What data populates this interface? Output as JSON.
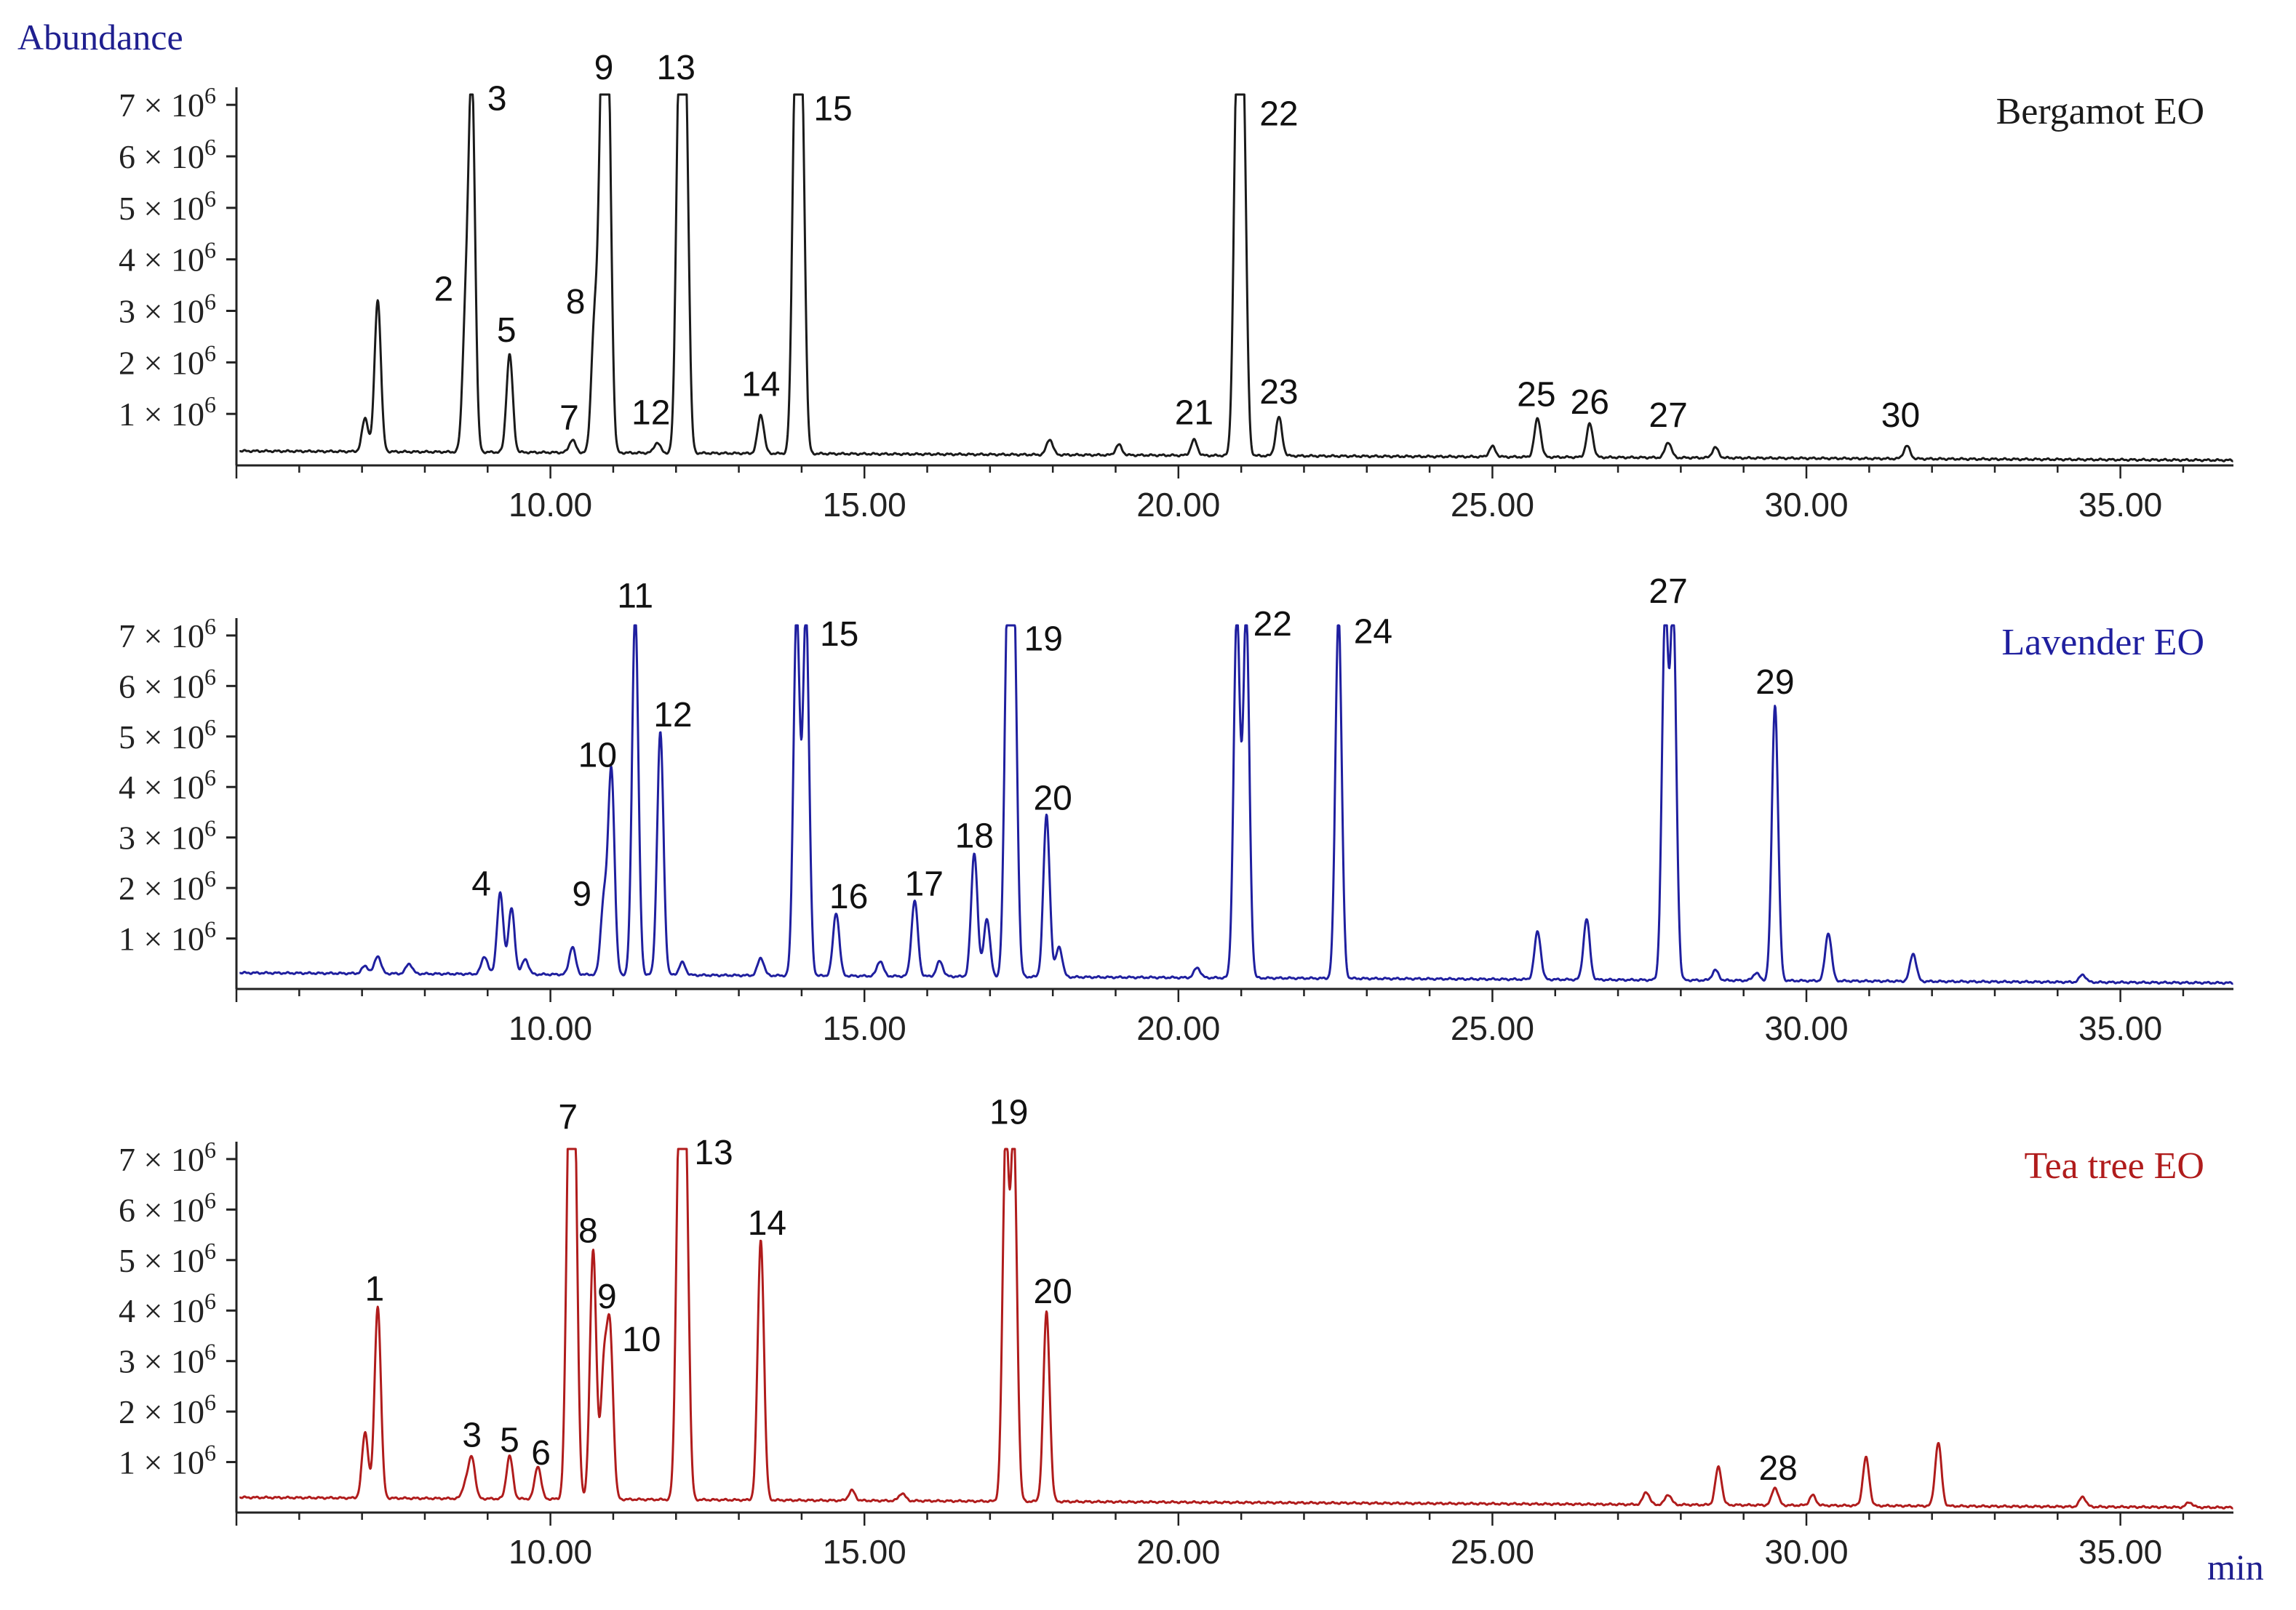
{
  "figure": {
    "y_axis_title": "Abundance",
    "x_axis_title": "min",
    "title_color": "#1f1f8f",
    "tick_prefix": "× 10",
    "tick_exp": "6"
  },
  "chart_data": [
    {
      "type": "line",
      "title": "Bergamot EO",
      "color": "#1a1a1a",
      "title_color": "#1a1a1a",
      "xlim": [
        5.0,
        36.8
      ],
      "ylim": [
        0,
        7.2
      ],
      "y_ticks": [
        1,
        2,
        3,
        4,
        5,
        6,
        7
      ],
      "x_ticks": [
        "10.00",
        "15.00",
        "20.00",
        "25.00",
        "30.00",
        "35.00"
      ],
      "baseline_start": 0.28,
      "baseline_end": 0.1,
      "peaks": [
        {
          "rt": 7.05,
          "h": 0.65,
          "w": 0.05
        },
        {
          "rt": 7.25,
          "h": 2.95,
          "w": 0.05
        },
        {
          "rt": 8.65,
          "h": 2.55,
          "w": 0.05
        },
        {
          "rt": 8.75,
          "h": 7.2,
          "w": 0.05
        },
        {
          "rt": 9.35,
          "h": 1.9,
          "w": 0.05
        },
        {
          "rt": 10.35,
          "h": 0.25,
          "w": 0.05
        },
        {
          "rt": 10.7,
          "h": 2.45,
          "w": 0.05
        },
        {
          "rt": 10.82,
          "h": 7.2,
          "w": 0.05
        },
        {
          "rt": 10.92,
          "h": 7.2,
          "w": 0.05
        },
        {
          "rt": 11.7,
          "h": 0.2,
          "w": 0.05
        },
        {
          "rt": 12.05,
          "h": 7.2,
          "w": 0.05
        },
        {
          "rt": 12.15,
          "h": 7.2,
          "w": 0.05
        },
        {
          "rt": 13.35,
          "h": 0.75,
          "w": 0.05
        },
        {
          "rt": 13.9,
          "h": 7.2,
          "w": 0.05
        },
        {
          "rt": 14.0,
          "h": 7.2,
          "w": 0.05
        },
        {
          "rt": 17.95,
          "h": 0.3,
          "w": 0.05
        },
        {
          "rt": 19.05,
          "h": 0.2,
          "w": 0.05
        },
        {
          "rt": 20.25,
          "h": 0.3,
          "w": 0.05
        },
        {
          "rt": 20.93,
          "h": 7.2,
          "w": 0.05
        },
        {
          "rt": 21.03,
          "h": 7.2,
          "w": 0.05
        },
        {
          "rt": 21.6,
          "h": 0.75,
          "w": 0.05
        },
        {
          "rt": 25.0,
          "h": 0.2,
          "w": 0.05
        },
        {
          "rt": 25.72,
          "h": 0.75,
          "w": 0.05
        },
        {
          "rt": 26.55,
          "h": 0.65,
          "w": 0.05
        },
        {
          "rt": 27.8,
          "h": 0.3,
          "w": 0.05
        },
        {
          "rt": 28.55,
          "h": 0.2,
          "w": 0.05
        },
        {
          "rt": 31.6,
          "h": 0.25,
          "w": 0.05
        }
      ],
      "labels": [
        {
          "text": "2",
          "rt": 8.3,
          "y": 3.2
        },
        {
          "text": "3",
          "rt": 9.15,
          "y": 6.9
        },
        {
          "text": "5",
          "rt": 9.3,
          "y": 2.4
        },
        {
          "text": "7",
          "rt": 10.3,
          "y": 0.7
        },
        {
          "text": "8",
          "rt": 10.4,
          "y": 2.95
        },
        {
          "text": "9",
          "rt": 10.85,
          "y": 7.5
        },
        {
          "text": "13",
          "rt": 12.0,
          "y": 7.5
        },
        {
          "text": "12",
          "rt": 11.6,
          "y": 0.8
        },
        {
          "text": "14",
          "rt": 13.35,
          "y": 1.35
        },
        {
          "text": "15",
          "rt": 14.5,
          "y": 6.7
        },
        {
          "text": "21",
          "rt": 20.25,
          "y": 0.8
        },
        {
          "text": "22",
          "rt": 21.6,
          "y": 6.6
        },
        {
          "text": "23",
          "rt": 21.6,
          "y": 1.2
        },
        {
          "text": "25",
          "rt": 25.7,
          "y": 1.15
        },
        {
          "text": "26",
          "rt": 26.55,
          "y": 1.0
        },
        {
          "text": "27",
          "rt": 27.8,
          "y": 0.75
        },
        {
          "text": "30",
          "rt": 31.5,
          "y": 0.75
        }
      ]
    },
    {
      "type": "line",
      "title": "Lavender EO",
      "color": "#1f1f9f",
      "title_color": "#1f1f9f",
      "xlim": [
        5.0,
        36.8
      ],
      "ylim": [
        0,
        7.2
      ],
      "y_ticks": [
        1,
        2,
        3,
        4,
        5,
        6,
        7
      ],
      "x_ticks": [
        "10.00",
        "15.00",
        "20.00",
        "25.00",
        "30.00",
        "35.00"
      ],
      "baseline_start": 0.32,
      "baseline_end": 0.12,
      "peaks": [
        {
          "rt": 7.05,
          "h": 0.15,
          "w": 0.05
        },
        {
          "rt": 7.25,
          "h": 0.35,
          "w": 0.05
        },
        {
          "rt": 7.75,
          "h": 0.2,
          "w": 0.05
        },
        {
          "rt": 8.95,
          "h": 0.35,
          "w": 0.05
        },
        {
          "rt": 9.2,
          "h": 1.6,
          "w": 0.05
        },
        {
          "rt": 9.38,
          "h": 1.3,
          "w": 0.05
        },
        {
          "rt": 9.6,
          "h": 0.3,
          "w": 0.05
        },
        {
          "rt": 10.35,
          "h": 0.55,
          "w": 0.05
        },
        {
          "rt": 10.85,
          "h": 1.45,
          "w": 0.05
        },
        {
          "rt": 10.97,
          "h": 4.05,
          "w": 0.05
        },
        {
          "rt": 11.35,
          "h": 7.2,
          "w": 0.05
        },
        {
          "rt": 11.75,
          "h": 4.8,
          "w": 0.05
        },
        {
          "rt": 12.1,
          "h": 0.25,
          "w": 0.05
        },
        {
          "rt": 13.35,
          "h": 0.35,
          "w": 0.05
        },
        {
          "rt": 13.92,
          "h": 7.2,
          "w": 0.05
        },
        {
          "rt": 14.07,
          "h": 7.2,
          "w": 0.05
        },
        {
          "rt": 14.55,
          "h": 1.25,
          "w": 0.05
        },
        {
          "rt": 15.25,
          "h": 0.3,
          "w": 0.05
        },
        {
          "rt": 15.8,
          "h": 1.5,
          "w": 0.05
        },
        {
          "rt": 16.2,
          "h": 0.3,
          "w": 0.05
        },
        {
          "rt": 16.75,
          "h": 2.45,
          "w": 0.05
        },
        {
          "rt": 16.95,
          "h": 1.15,
          "w": 0.05
        },
        {
          "rt": 17.28,
          "h": 7.2,
          "w": 0.05
        },
        {
          "rt": 17.38,
          "h": 7.2,
          "w": 0.05
        },
        {
          "rt": 17.9,
          "h": 3.2,
          "w": 0.05
        },
        {
          "rt": 18.1,
          "h": 0.6,
          "w": 0.05
        },
        {
          "rt": 20.3,
          "h": 0.2,
          "w": 0.05
        },
        {
          "rt": 20.93,
          "h": 7.2,
          "w": 0.05
        },
        {
          "rt": 21.08,
          "h": 7.2,
          "w": 0.05
        },
        {
          "rt": 22.55,
          "h": 7.2,
          "w": 0.05
        },
        {
          "rt": 25.72,
          "h": 0.95,
          "w": 0.05
        },
        {
          "rt": 26.5,
          "h": 1.2,
          "w": 0.05
        },
        {
          "rt": 27.75,
          "h": 7.2,
          "w": 0.05
        },
        {
          "rt": 27.88,
          "h": 7.2,
          "w": 0.05
        },
        {
          "rt": 28.55,
          "h": 0.2,
          "w": 0.05
        },
        {
          "rt": 29.2,
          "h": 0.15,
          "w": 0.05
        },
        {
          "rt": 29.5,
          "h": 5.45,
          "w": 0.05
        },
        {
          "rt": 30.35,
          "h": 0.95,
          "w": 0.05
        },
        {
          "rt": 31.7,
          "h": 0.55,
          "w": 0.05
        },
        {
          "rt": 34.4,
          "h": 0.15,
          "w": 0.05
        }
      ],
      "labels": [
        {
          "text": "4",
          "rt": 8.9,
          "y": 1.85
        },
        {
          "text": "9",
          "rt": 10.5,
          "y": 1.65
        },
        {
          "text": "10",
          "rt": 10.75,
          "y": 4.4
        },
        {
          "text": "11",
          "rt": 11.35,
          "y": 7.55
        },
        {
          "text": "12",
          "rt": 11.95,
          "y": 5.2
        },
        {
          "text": "15",
          "rt": 14.6,
          "y": 6.8
        },
        {
          "text": "16",
          "rt": 14.75,
          "y": 1.6
        },
        {
          "text": "17",
          "rt": 15.95,
          "y": 1.85
        },
        {
          "text": "18",
          "rt": 16.75,
          "y": 2.8
        },
        {
          "text": "19",
          "rt": 17.85,
          "y": 6.7
        },
        {
          "text": "20",
          "rt": 18.0,
          "y": 3.55
        },
        {
          "text": "22",
          "rt": 21.5,
          "y": 7.0
        },
        {
          "text": "24",
          "rt": 23.1,
          "y": 6.85
        },
        {
          "text": "27",
          "rt": 27.8,
          "y": 7.65
        },
        {
          "text": "29",
          "rt": 29.5,
          "y": 5.85
        }
      ]
    },
    {
      "type": "line",
      "title": "Tea tree EO",
      "color": "#b01c1c",
      "title_color": "#b01c1c",
      "xlim": [
        5.0,
        36.8
      ],
      "ylim": [
        0,
        7.2
      ],
      "y_ticks": [
        1,
        2,
        3,
        4,
        5,
        6,
        7
      ],
      "x_ticks": [
        "10.00",
        "15.00",
        "20.00",
        "25.00",
        "30.00",
        "35.00"
      ],
      "baseline_start": 0.3,
      "baseline_end": 0.1,
      "peaks": [
        {
          "rt": 7.05,
          "h": 1.3,
          "w": 0.05
        },
        {
          "rt": 7.25,
          "h": 3.8,
          "w": 0.05
        },
        {
          "rt": 8.65,
          "h": 0.3,
          "w": 0.05
        },
        {
          "rt": 8.75,
          "h": 0.8,
          "w": 0.05
        },
        {
          "rt": 9.35,
          "h": 0.85,
          "w": 0.05
        },
        {
          "rt": 9.8,
          "h": 0.65,
          "w": 0.05
        },
        {
          "rt": 10.3,
          "h": 7.2,
          "w": 0.05
        },
        {
          "rt": 10.38,
          "h": 7.2,
          "w": 0.05
        },
        {
          "rt": 10.68,
          "h": 4.95,
          "w": 0.05
        },
        {
          "rt": 10.85,
          "h": 2.5,
          "w": 0.05
        },
        {
          "rt": 10.95,
          "h": 3.2,
          "w": 0.05
        },
        {
          "rt": 12.05,
          "h": 7.2,
          "w": 0.05
        },
        {
          "rt": 12.15,
          "h": 7.2,
          "w": 0.05
        },
        {
          "rt": 13.35,
          "h": 5.15,
          "w": 0.05
        },
        {
          "rt": 14.8,
          "h": 0.2,
          "w": 0.05
        },
        {
          "rt": 15.6,
          "h": 0.15,
          "w": 0.05
        },
        {
          "rt": 17.25,
          "h": 7.2,
          "w": 0.05
        },
        {
          "rt": 17.38,
          "h": 7.2,
          "w": 0.05
        },
        {
          "rt": 17.9,
          "h": 3.75,
          "w": 0.05
        },
        {
          "rt": 27.45,
          "h": 0.25,
          "w": 0.05
        },
        {
          "rt": 27.8,
          "h": 0.2,
          "w": 0.05
        },
        {
          "rt": 28.6,
          "h": 0.75,
          "w": 0.05
        },
        {
          "rt": 29.5,
          "h": 0.35,
          "w": 0.05
        },
        {
          "rt": 30.1,
          "h": 0.2,
          "w": 0.05
        },
        {
          "rt": 30.95,
          "h": 0.95,
          "w": 0.05
        },
        {
          "rt": 32.1,
          "h": 1.25,
          "w": 0.05
        },
        {
          "rt": 34.4,
          "h": 0.2,
          "w": 0.05
        },
        {
          "rt": 36.1,
          "h": 0.1,
          "w": 0.05
        }
      ],
      "labels": [
        {
          "text": "1",
          "rt": 7.2,
          "y": 4.2
        },
        {
          "text": "3",
          "rt": 8.75,
          "y": 1.3
        },
        {
          "text": "5",
          "rt": 9.35,
          "y": 1.2
        },
        {
          "text": "6",
          "rt": 9.85,
          "y": 0.95
        },
        {
          "text": "7",
          "rt": 10.28,
          "y": 7.6
        },
        {
          "text": "8",
          "rt": 10.6,
          "y": 5.35
        },
        {
          "text": "9",
          "rt": 10.9,
          "y": 4.05
        },
        {
          "text": "10",
          "rt": 11.45,
          "y": 3.2
        },
        {
          "text": "13",
          "rt": 12.6,
          "y": 6.9
        },
        {
          "text": "14",
          "rt": 13.45,
          "y": 5.5
        },
        {
          "text": "19",
          "rt": 17.3,
          "y": 7.7
        },
        {
          "text": "20",
          "rt": 18.0,
          "y": 4.15
        },
        {
          "text": "28",
          "rt": 29.55,
          "y": 0.65
        }
      ]
    }
  ]
}
